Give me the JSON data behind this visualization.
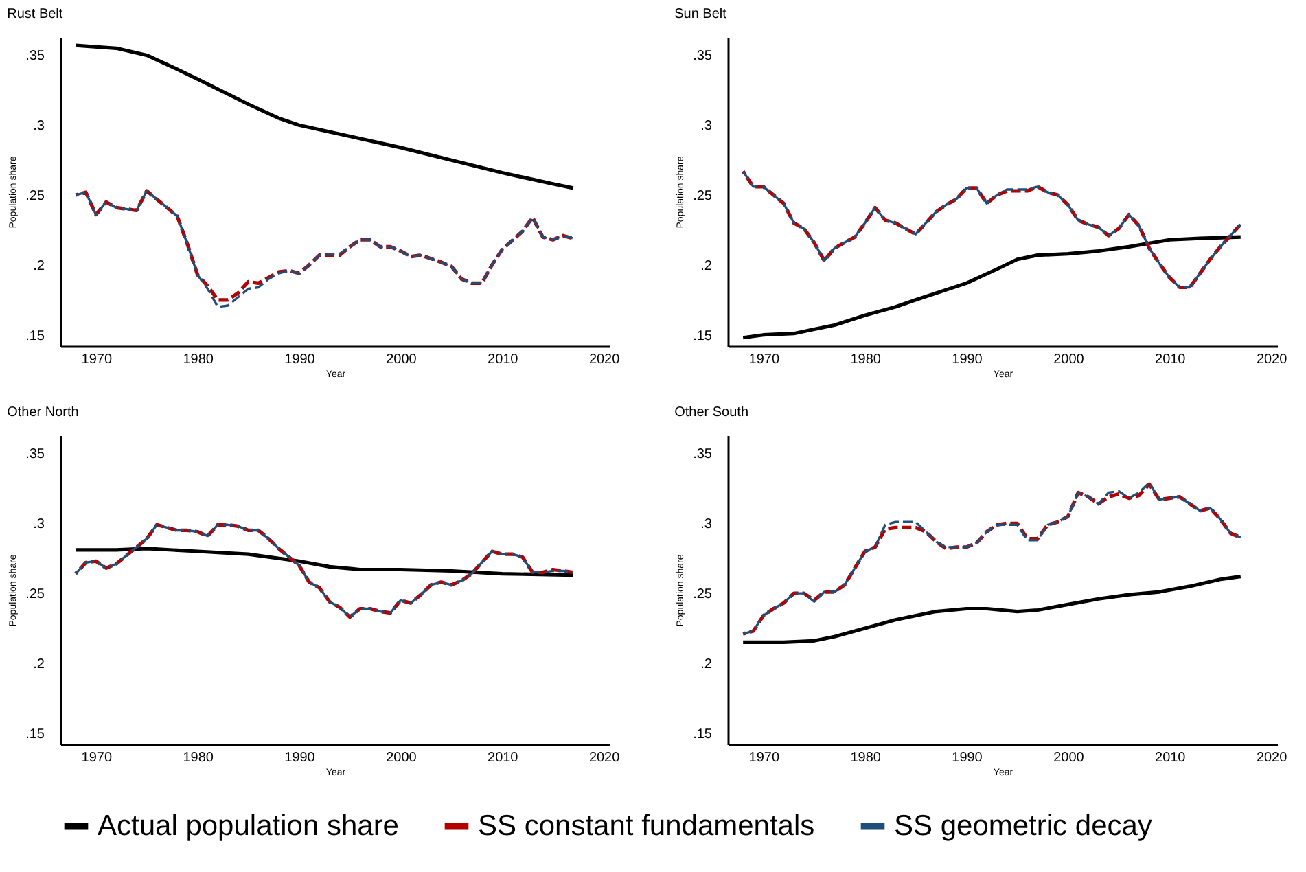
{
  "chart_data": [
    {
      "type": "line",
      "title": "Rust Belt",
      "xlabel": "Year",
      "ylabel": "Population share",
      "xlim": [
        1966.5,
        2020.6
      ],
      "xticks": [
        1970,
        1980,
        1990,
        2000,
        2010,
        2020
      ],
      "ylim": [
        0.142,
        0.363
      ],
      "yticks": [
        {
          "value": 0.15,
          "label": ".15"
        },
        {
          "value": 0.2,
          "label": ".2"
        },
        {
          "value": 0.25,
          "label": ".25"
        },
        {
          "value": 0.3,
          "label": ".3"
        },
        {
          "value": 0.35,
          "label": ".35"
        }
      ],
      "grid": false,
      "legend": "bottom",
      "series": [
        {
          "name": "Actual population share",
          "color": "#000000",
          "line_style": "solid",
          "x": [
            1968,
            1972,
            1975,
            1978,
            1980,
            1985,
            1988,
            1990,
            1995,
            2000,
            2005,
            2010,
            2015,
            2017
          ],
          "values": [
            0.357,
            0.355,
            0.35,
            0.34,
            0.333,
            0.315,
            0.305,
            0.3,
            0.292,
            0.284,
            0.275,
            0.266,
            0.258,
            0.255
          ]
        },
        {
          "name": "SS constant fundamentals",
          "color": "#b30000",
          "line_style": "dashed",
          "x": [
            1968,
            1969,
            1970,
            1971,
            1972,
            1974,
            1975,
            1976,
            1978,
            1979,
            1980,
            1981,
            1982,
            1983,
            1984,
            1985,
            1986,
            1987,
            1988,
            1989,
            1990,
            1991,
            1992,
            1994,
            1995,
            1996,
            1997,
            1998,
            1999,
            2000,
            2001,
            2002,
            2004,
            2005,
            2006,
            2007,
            2008,
            2009,
            2010,
            2012,
            2013,
            2014,
            2015,
            2016,
            2017
          ],
          "values": [
            0.25,
            0.252,
            0.236,
            0.245,
            0.241,
            0.239,
            0.253,
            0.247,
            0.235,
            0.215,
            0.193,
            0.185,
            0.175,
            0.175,
            0.18,
            0.188,
            0.187,
            0.191,
            0.195,
            0.196,
            0.194,
            0.2,
            0.207,
            0.207,
            0.213,
            0.218,
            0.218,
            0.213,
            0.213,
            0.21,
            0.206,
            0.207,
            0.202,
            0.199,
            0.19,
            0.187,
            0.187,
            0.2,
            0.211,
            0.224,
            0.234,
            0.22,
            0.218,
            0.221,
            0.219
          ]
        },
        {
          "name": "SS geometric decay",
          "color": "#1f4e79",
          "line_style": "dashed",
          "x": [
            1968,
            1969,
            1970,
            1971,
            1972,
            1974,
            1975,
            1976,
            1978,
            1979,
            1980,
            1981,
            1982,
            1983,
            1984,
            1985,
            1986,
            1987,
            1988,
            1989,
            1990,
            1991,
            1992,
            1994,
            1995,
            1996,
            1997,
            1998,
            1999,
            2000,
            2001,
            2002,
            2004,
            2005,
            2006,
            2007,
            2008,
            2009,
            2010,
            2012,
            2013,
            2014,
            2015,
            2016,
            2017
          ],
          "values": [
            0.25,
            0.252,
            0.236,
            0.245,
            0.241,
            0.239,
            0.253,
            0.247,
            0.235,
            0.215,
            0.193,
            0.183,
            0.17,
            0.171,
            0.177,
            0.183,
            0.184,
            0.19,
            0.194,
            0.196,
            0.194,
            0.2,
            0.207,
            0.208,
            0.213,
            0.218,
            0.218,
            0.213,
            0.213,
            0.21,
            0.206,
            0.207,
            0.202,
            0.199,
            0.19,
            0.187,
            0.187,
            0.2,
            0.211,
            0.224,
            0.234,
            0.22,
            0.218,
            0.221,
            0.219
          ]
        }
      ]
    },
    {
      "type": "line",
      "title": "Sun Belt",
      "xlabel": "Year",
      "ylabel": "Population share",
      "xlim": [
        1966.5,
        2020.6
      ],
      "xticks": [
        1970,
        1980,
        1990,
        2000,
        2010,
        2020
      ],
      "ylim": [
        0.142,
        0.363
      ],
      "yticks": [
        {
          "value": 0.15,
          "label": ".15"
        },
        {
          "value": 0.2,
          "label": ".2"
        },
        {
          "value": 0.25,
          "label": ".25"
        },
        {
          "value": 0.3,
          "label": ".3"
        },
        {
          "value": 0.35,
          "label": ".35"
        }
      ],
      "grid": false,
      "legend": "bottom",
      "series": [
        {
          "name": "Actual population share",
          "color": "#000000",
          "line_style": "solid",
          "x": [
            1968,
            1970,
            1973,
            1975,
            1977,
            1980,
            1983,
            1985,
            1990,
            1993,
            1995,
            1997,
            2000,
            2003,
            2006,
            2010,
            2013,
            2017
          ],
          "values": [
            0.148,
            0.15,
            0.151,
            0.154,
            0.157,
            0.164,
            0.17,
            0.175,
            0.187,
            0.197,
            0.204,
            0.207,
            0.208,
            0.21,
            0.213,
            0.218,
            0.219,
            0.22
          ]
        },
        {
          "name": "SS constant fundamentals",
          "color": "#b30000",
          "line_style": "dashed",
          "x": [
            1968,
            1969,
            1970,
            1971,
            1972,
            1973,
            1974,
            1975,
            1976,
            1977,
            1978,
            1979,
            1980,
            1981,
            1982,
            1983,
            1984,
            1985,
            1986,
            1987,
            1988,
            1989,
            1990,
            1991,
            1992,
            1993,
            1994,
            1995,
            1996,
            1997,
            1998,
            1999,
            2000,
            2001,
            2002,
            2003,
            2004,
            2005,
            2006,
            2007,
            2008,
            2009,
            2010,
            2011,
            2012,
            2013,
            2014,
            2015,
            2016,
            2017
          ],
          "values": [
            0.267,
            0.256,
            0.256,
            0.25,
            0.244,
            0.23,
            0.226,
            0.216,
            0.203,
            0.212,
            0.216,
            0.22,
            0.23,
            0.241,
            0.232,
            0.23,
            0.226,
            0.222,
            0.23,
            0.238,
            0.243,
            0.247,
            0.255,
            0.255,
            0.244,
            0.25,
            0.253,
            0.253,
            0.253,
            0.256,
            0.252,
            0.25,
            0.243,
            0.232,
            0.229,
            0.227,
            0.221,
            0.226,
            0.236,
            0.228,
            0.212,
            0.201,
            0.191,
            0.184,
            0.184,
            0.194,
            0.204,
            0.213,
            0.221,
            0.229
          ]
        },
        {
          "name": "SS geometric decay",
          "color": "#1f4e79",
          "line_style": "dashed",
          "x": [
            1968,
            1969,
            1970,
            1971,
            1972,
            1973,
            1974,
            1975,
            1976,
            1977,
            1978,
            1979,
            1980,
            1981,
            1982,
            1983,
            1984,
            1985,
            1986,
            1987,
            1988,
            1989,
            1990,
            1991,
            1992,
            1993,
            1994,
            1995,
            1996,
            1997,
            1998,
            1999,
            2000,
            2001,
            2002,
            2003,
            2004,
            2005,
            2006,
            2007,
            2008,
            2009,
            2010,
            2011,
            2012,
            2013,
            2014,
            2015,
            2016,
            2017
          ],
          "values": [
            0.267,
            0.256,
            0.256,
            0.25,
            0.244,
            0.23,
            0.226,
            0.216,
            0.203,
            0.212,
            0.216,
            0.22,
            0.23,
            0.241,
            0.232,
            0.23,
            0.226,
            0.222,
            0.23,
            0.238,
            0.243,
            0.247,
            0.255,
            0.255,
            0.244,
            0.25,
            0.254,
            0.254,
            0.254,
            0.256,
            0.252,
            0.25,
            0.243,
            0.232,
            0.229,
            0.227,
            0.221,
            0.226,
            0.236,
            0.228,
            0.212,
            0.201,
            0.191,
            0.184,
            0.184,
            0.194,
            0.204,
            0.213,
            0.221,
            0.229
          ]
        }
      ]
    },
    {
      "type": "line",
      "title": "Other North",
      "xlabel": "Year",
      "ylabel": "Population share",
      "xlim": [
        1966.5,
        2020.6
      ],
      "xticks": [
        1970,
        1980,
        1990,
        2000,
        2010,
        2020
      ],
      "ylim": [
        0.142,
        0.363
      ],
      "yticks": [
        {
          "value": 0.15,
          "label": ".15"
        },
        {
          "value": 0.2,
          "label": ".2"
        },
        {
          "value": 0.25,
          "label": ".25"
        },
        {
          "value": 0.3,
          "label": ".3"
        },
        {
          "value": 0.35,
          "label": ".35"
        }
      ],
      "grid": false,
      "legend": "bottom",
      "series": [
        {
          "name": "Actual population share",
          "color": "#000000",
          "line_style": "solid",
          "x": [
            1968,
            1972,
            1975,
            1980,
            1985,
            1990,
            1993,
            1996,
            2000,
            2005,
            2010,
            2017
          ],
          "values": [
            0.281,
            0.281,
            0.282,
            0.28,
            0.278,
            0.273,
            0.269,
            0.267,
            0.267,
            0.266,
            0.264,
            0.263
          ]
        },
        {
          "name": "SS constant fundamentals",
          "color": "#b30000",
          "line_style": "dashed",
          "x": [
            1968,
            1969,
            1970,
            1971,
            1972,
            1973,
            1974,
            1975,
            1976,
            1977,
            1978,
            1979,
            1980,
            1981,
            1982,
            1983,
            1984,
            1985,
            1986,
            1987,
            1988,
            1989,
            1990,
            1991,
            1992,
            1993,
            1994,
            1995,
            1996,
            1997,
            1998,
            1999,
            2000,
            2001,
            2002,
            2003,
            2004,
            2005,
            2006,
            2007,
            2008,
            2009,
            2010,
            2011,
            2012,
            2013,
            2014,
            2015,
            2016,
            2017
          ],
          "values": [
            0.264,
            0.272,
            0.273,
            0.268,
            0.271,
            0.277,
            0.283,
            0.289,
            0.299,
            0.297,
            0.295,
            0.295,
            0.294,
            0.291,
            0.299,
            0.299,
            0.298,
            0.295,
            0.295,
            0.289,
            0.282,
            0.276,
            0.27,
            0.258,
            0.254,
            0.244,
            0.24,
            0.233,
            0.239,
            0.239,
            0.237,
            0.236,
            0.245,
            0.243,
            0.249,
            0.256,
            0.258,
            0.256,
            0.259,
            0.264,
            0.272,
            0.28,
            0.278,
            0.278,
            0.276,
            0.265,
            0.265,
            0.267,
            0.266,
            0.265
          ]
        },
        {
          "name": "SS geometric decay",
          "color": "#1f4e79",
          "line_style": "dashed",
          "x": [
            1968,
            1969,
            1970,
            1971,
            1972,
            1973,
            1974,
            1975,
            1976,
            1977,
            1978,
            1979,
            1980,
            1981,
            1982,
            1983,
            1984,
            1985,
            1986,
            1987,
            1988,
            1989,
            1990,
            1991,
            1992,
            1993,
            1994,
            1995,
            1996,
            1997,
            1998,
            1999,
            2000,
            2001,
            2002,
            2003,
            2004,
            2005,
            2006,
            2007,
            2008,
            2009,
            2010,
            2011,
            2012,
            2013,
            2014,
            2015,
            2016,
            2017
          ],
          "values": [
            0.264,
            0.272,
            0.273,
            0.268,
            0.271,
            0.277,
            0.283,
            0.289,
            0.299,
            0.297,
            0.295,
            0.295,
            0.294,
            0.291,
            0.299,
            0.299,
            0.298,
            0.295,
            0.295,
            0.289,
            0.282,
            0.276,
            0.27,
            0.258,
            0.254,
            0.244,
            0.24,
            0.233,
            0.239,
            0.239,
            0.237,
            0.236,
            0.245,
            0.243,
            0.249,
            0.256,
            0.258,
            0.256,
            0.259,
            0.264,
            0.272,
            0.28,
            0.278,
            0.278,
            0.276,
            0.265,
            0.265,
            0.266,
            0.266,
            0.265
          ]
        }
      ]
    },
    {
      "type": "line",
      "title": "Other South",
      "xlabel": "Year",
      "ylabel": "Population share",
      "xlim": [
        1966.5,
        2020.6
      ],
      "xticks": [
        1970,
        1980,
        1990,
        2000,
        2010,
        2020
      ],
      "ylim": [
        0.142,
        0.363
      ],
      "yticks": [
        {
          "value": 0.15,
          "label": ".15"
        },
        {
          "value": 0.2,
          "label": ".2"
        },
        {
          "value": 0.25,
          "label": ".25"
        },
        {
          "value": 0.3,
          "label": ".3"
        },
        {
          "value": 0.35,
          "label": ".35"
        }
      ],
      "grid": false,
      "legend": "bottom",
      "series": [
        {
          "name": "Actual population share",
          "color": "#000000",
          "line_style": "solid",
          "x": [
            1968,
            1972,
            1975,
            1977,
            1980,
            1983,
            1987,
            1990,
            1992,
            1995,
            1997,
            2000,
            2003,
            2006,
            2009,
            2012,
            2015,
            2017
          ],
          "values": [
            0.215,
            0.215,
            0.216,
            0.219,
            0.225,
            0.231,
            0.237,
            0.239,
            0.239,
            0.237,
            0.238,
            0.242,
            0.246,
            0.249,
            0.251,
            0.255,
            0.26,
            0.262
          ]
        },
        {
          "name": "SS constant fundamentals",
          "color": "#b30000",
          "line_style": "dashed",
          "x": [
            1968,
            1969,
            1970,
            1971,
            1972,
            1973,
            1974,
            1975,
            1976,
            1977,
            1978,
            1979,
            1980,
            1981,
            1982,
            1983,
            1984,
            1985,
            1986,
            1987,
            1988,
            1989,
            1990,
            1991,
            1992,
            1993,
            1994,
            1995,
            1996,
            1997,
            1998,
            1999,
            2000,
            2001,
            2002,
            2003,
            2004,
            2005,
            2006,
            2007,
            2008,
            2009,
            2010,
            2011,
            2012,
            2013,
            2014,
            2015,
            2016,
            2017
          ],
          "values": [
            0.221,
            0.223,
            0.234,
            0.239,
            0.243,
            0.25,
            0.25,
            0.245,
            0.251,
            0.251,
            0.256,
            0.268,
            0.28,
            0.283,
            0.296,
            0.297,
            0.297,
            0.297,
            0.294,
            0.287,
            0.282,
            0.283,
            0.283,
            0.286,
            0.294,
            0.299,
            0.3,
            0.3,
            0.289,
            0.289,
            0.299,
            0.301,
            0.305,
            0.322,
            0.319,
            0.314,
            0.319,
            0.321,
            0.318,
            0.32,
            0.328,
            0.317,
            0.318,
            0.319,
            0.314,
            0.309,
            0.311,
            0.303,
            0.293,
            0.29
          ]
        },
        {
          "name": "SS geometric decay",
          "color": "#1f4e79",
          "line_style": "dashed",
          "x": [
            1968,
            1969,
            1970,
            1971,
            1972,
            1973,
            1974,
            1975,
            1976,
            1977,
            1978,
            1979,
            1980,
            1981,
            1982,
            1983,
            1984,
            1985,
            1986,
            1987,
            1988,
            1989,
            1990,
            1991,
            1992,
            1993,
            1994,
            1995,
            1996,
            1997,
            1998,
            1999,
            2000,
            2001,
            2002,
            2003,
            2004,
            2005,
            2006,
            2007,
            2008,
            2009,
            2010,
            2011,
            2012,
            2013,
            2014,
            2015,
            2016,
            2017
          ],
          "values": [
            0.221,
            0.223,
            0.234,
            0.239,
            0.243,
            0.25,
            0.25,
            0.244,
            0.251,
            0.251,
            0.256,
            0.268,
            0.28,
            0.283,
            0.299,
            0.301,
            0.301,
            0.301,
            0.294,
            0.287,
            0.283,
            0.283,
            0.283,
            0.286,
            0.294,
            0.299,
            0.299,
            0.299,
            0.288,
            0.288,
            0.299,
            0.301,
            0.305,
            0.322,
            0.319,
            0.314,
            0.322,
            0.323,
            0.318,
            0.322,
            0.329,
            0.317,
            0.318,
            0.319,
            0.314,
            0.309,
            0.311,
            0.303,
            0.293,
            0.29
          ]
        }
      ]
    }
  ]
}
